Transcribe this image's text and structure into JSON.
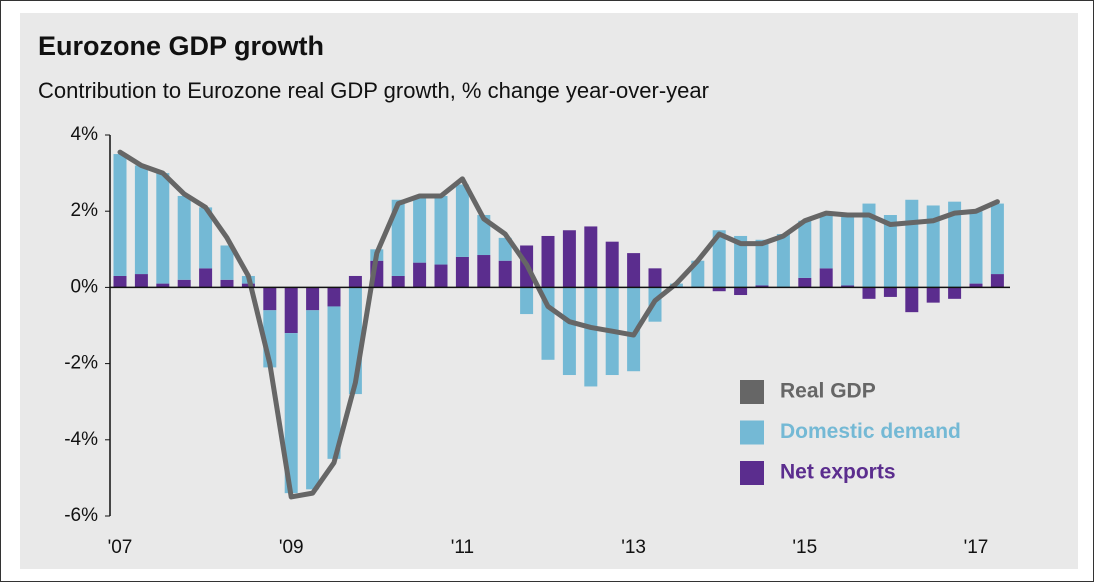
{
  "chart_data": {
    "type": "bar",
    "stacked": true,
    "title": "Eurozone GDP growth",
    "subtitle": "Contribution to Eurozone real GDP growth, % change year-over-year",
    "categories": [
      "'07",
      null,
      null,
      null,
      null,
      null,
      null,
      null,
      "'09",
      null,
      null,
      null,
      null,
      null,
      null,
      null,
      "'11",
      null,
      null,
      null,
      null,
      null,
      null,
      null,
      "'13",
      null,
      null,
      null,
      null,
      null,
      null,
      null,
      "'15",
      null,
      null,
      null,
      null,
      null,
      null,
      null,
      "'17",
      null
    ],
    "series": [
      {
        "name": "Real GDP",
        "type": "line",
        "color": "#666666",
        "values": [
          3.55,
          3.2,
          3.0,
          2.45,
          2.1,
          1.3,
          0.3,
          -2.0,
          -5.5,
          -5.4,
          -4.6,
          -2.5,
          0.9,
          2.2,
          2.4,
          2.4,
          2.85,
          1.8,
          1.4,
          0.6,
          -0.5,
          -0.9,
          -1.05,
          -1.15,
          -1.25,
          -0.35,
          0.1,
          0.7,
          1.4,
          1.15,
          1.15,
          1.35,
          1.75,
          1.95,
          1.9,
          1.9,
          1.65,
          1.7,
          1.75,
          1.95,
          2.0,
          2.25
        ]
      },
      {
        "name": "Domestic demand",
        "type": "bar",
        "color": "#74b9d5",
        "values": [
          3.2,
          2.85,
          2.9,
          2.2,
          1.6,
          0.9,
          0.2,
          -1.5,
          -4.2,
          -4.7,
          -4.0,
          -2.8,
          0.3,
          2.0,
          1.75,
          1.8,
          1.9,
          1.05,
          0.6,
          -0.7,
          -1.9,
          -2.3,
          -2.6,
          -2.3,
          -2.2,
          -0.9,
          0.1,
          0.7,
          1.5,
          1.35,
          1.2,
          1.4,
          1.5,
          1.45,
          1.8,
          2.2,
          1.9,
          2.3,
          2.15,
          2.25,
          1.9,
          1.85
        ]
      },
      {
        "name": "Net exports",
        "type": "bar",
        "color": "#5b2d8e",
        "values": [
          0.3,
          0.35,
          0.1,
          0.2,
          0.5,
          0.2,
          0.1,
          -0.6,
          -1.2,
          -0.6,
          -0.5,
          0.3,
          0.7,
          0.3,
          0.65,
          0.6,
          0.8,
          0.85,
          0.7,
          1.1,
          1.35,
          1.5,
          1.6,
          1.2,
          0.9,
          0.5,
          0.0,
          0.0,
          -0.1,
          -0.2,
          0.05,
          0.0,
          0.25,
          0.5,
          0.05,
          -0.3,
          -0.25,
          -0.65,
          -0.4,
          -0.3,
          0.1,
          0.35
        ]
      }
    ],
    "ylim": [
      -6,
      4
    ],
    "yticks": [
      {
        "value": -6,
        "label": "-6%"
      },
      {
        "value": -4,
        "label": "-4%"
      },
      {
        "value": -2,
        "label": "-2%"
      },
      {
        "value": 0,
        "label": "0%"
      },
      {
        "value": 2,
        "label": "2%"
      },
      {
        "value": 4,
        "label": "4%"
      }
    ],
    "grid": false,
    "legend": "lower right"
  }
}
